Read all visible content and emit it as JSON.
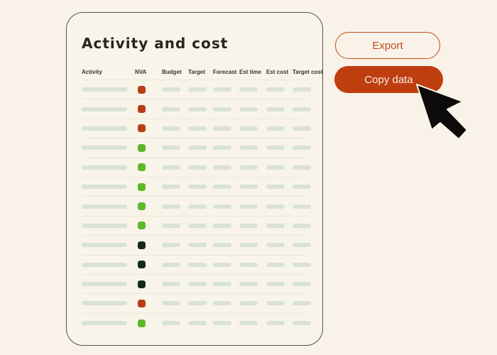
{
  "window": {
    "background": "#f9f2e8"
  },
  "card": {
    "title": "Activity and cost",
    "background": "#f8f4e9",
    "border_color": "#55524a"
  },
  "table": {
    "columns": [
      "Activity",
      "NVA",
      "Budget",
      "Target",
      "Forecast",
      "Est time",
      "Est cost",
      "Target cost"
    ],
    "skeleton_color": "#d9e3d3",
    "status_colors": {
      "red": "#b63d15",
      "green": "#5cb827",
      "dark": "#152b15"
    },
    "rows": [
      {
        "nva": "red"
      },
      {
        "nva": "red"
      },
      {
        "nva": "red"
      },
      {
        "nva": "green"
      },
      {
        "nva": "green"
      },
      {
        "nva": "green"
      },
      {
        "nva": "green"
      },
      {
        "nva": "green"
      },
      {
        "nva": "dark"
      },
      {
        "nva": "dark"
      },
      {
        "nva": "dark"
      },
      {
        "nva": "red"
      },
      {
        "nva": "green"
      }
    ]
  },
  "actions": {
    "export_label": "Export",
    "copy_label": "Copy data",
    "accent_color": "#c24a1d",
    "copy_fill_color": "#bf3e10",
    "copy_text_color": "#f7efe1"
  },
  "cursor": {
    "icon": "arrow-pointer",
    "color": "#0c0b09"
  }
}
